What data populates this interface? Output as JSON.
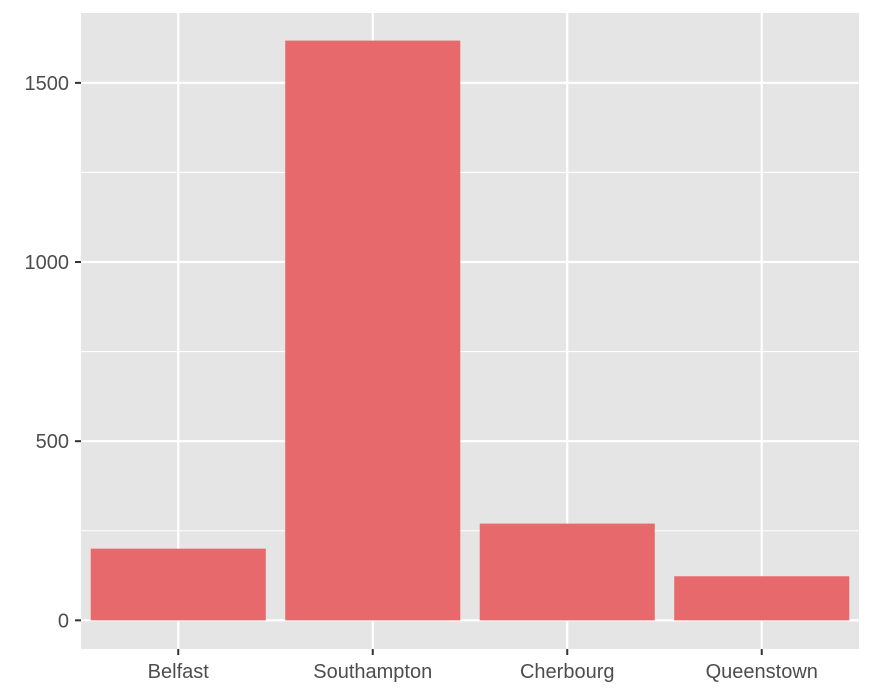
{
  "chart_data": {
    "type": "bar",
    "categories": [
      "Belfast",
      "Southampton",
      "Cherbourg",
      "Queenstown"
    ],
    "values": [
      200,
      1618,
      270,
      123
    ],
    "title": "",
    "xlabel": "",
    "ylabel": "",
    "ylim": [
      -80,
      1695
    ],
    "yticks": [
      0,
      500,
      1000,
      1500
    ],
    "ytick_labels": [
      "0",
      "500",
      "1000",
      "1500"
    ],
    "grid": true,
    "legend": "none",
    "colors": {
      "bar": "#e8696b",
      "panel_background": "#e5e5e5",
      "grid": "#ffffff",
      "tick_text": "#4d4d4d"
    }
  }
}
